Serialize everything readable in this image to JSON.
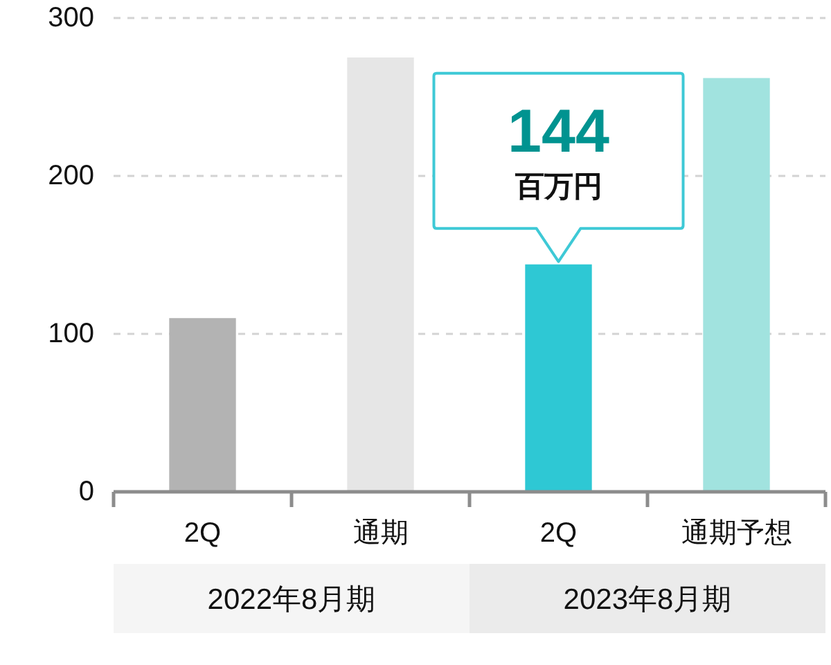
{
  "chart_data": {
    "type": "bar",
    "categories": [
      "2Q",
      "通期",
      "2Q",
      "通期予想"
    ],
    "values": [
      110,
      275,
      144,
      262
    ],
    "colors": [
      "#b3b3b3",
      "#e6e6e6",
      "#2ec8d4",
      "#a1e3df"
    ],
    "ylim": [
      0,
      300
    ],
    "yticks": [
      0,
      100,
      200,
      300
    ],
    "grid": "y",
    "value_labels": [
      null,
      null,
      "144",
      null
    ],
    "annotations": [
      "百万円",
      "2022年8月期",
      "2023年8月期"
    ]
  }
}
